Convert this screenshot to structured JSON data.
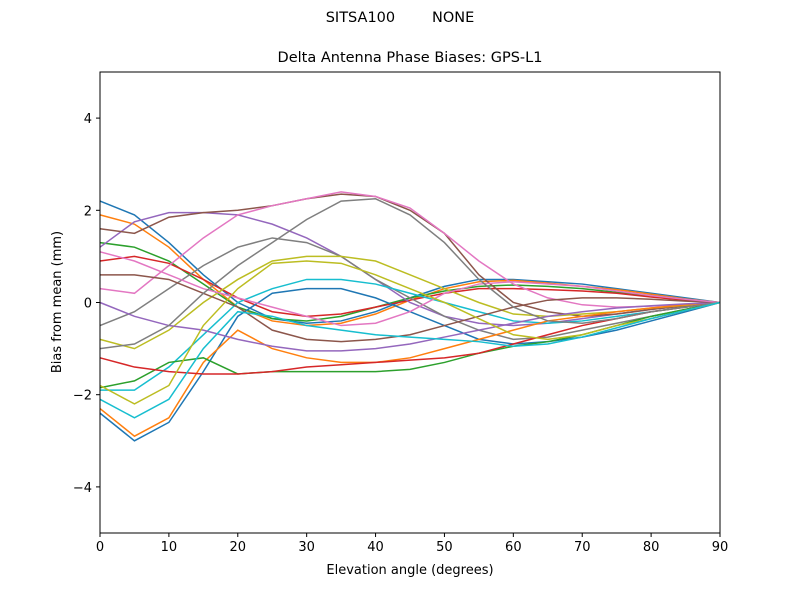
{
  "chart_data": {
    "type": "line",
    "suptitle": "SITSA100        NONE",
    "title": "Delta Antenna Phase Biases: GPS-L1",
    "xlabel": "Elevation angle (degrees)",
    "ylabel": "Bias from mean (mm)",
    "xlim": [
      0,
      90
    ],
    "ylim": [
      -5,
      5
    ],
    "xticks": [
      0,
      10,
      20,
      30,
      40,
      50,
      60,
      70,
      80,
      90
    ],
    "xtick_labels": [
      "0",
      "10",
      "20",
      "30",
      "40",
      "50",
      "60",
      "70",
      "80",
      "90"
    ],
    "yticks": [
      -4,
      -2,
      0,
      2,
      4
    ],
    "ytick_labels": [
      "−4",
      "−2",
      "0",
      "2",
      "4"
    ],
    "grid": false,
    "x": [
      0,
      5,
      10,
      15,
      20,
      25,
      30,
      35,
      40,
      45,
      50,
      55,
      60,
      65,
      70,
      75,
      80,
      85,
      90
    ],
    "colors": [
      "#1f77b4",
      "#ff7f0e",
      "#2ca02c",
      "#d62728",
      "#9467bd",
      "#8c564b",
      "#e377c2",
      "#7f7f7f",
      "#bcbd22",
      "#17becf"
    ],
    "series": [
      {
        "values": [
          2.2,
          1.9,
          1.3,
          0.6,
          0,
          -0.35,
          -0.45,
          -0.4,
          -0.2,
          0.1,
          0.35,
          0.5,
          0.5,
          0.45,
          0.4,
          0.3,
          0.2,
          0.1,
          0
        ]
      },
      {
        "values": [
          1.9,
          1.7,
          1.2,
          0.5,
          -0.1,
          -0.4,
          -0.5,
          -0.45,
          -0.25,
          0.05,
          0.3,
          0.45,
          0.48,
          0.42,
          0.35,
          0.28,
          0.18,
          0.08,
          0
        ]
      },
      {
        "values": [
          1.3,
          1.2,
          0.9,
          0.4,
          -0.1,
          -0.35,
          -0.4,
          -0.3,
          -0.1,
          0.1,
          0.25,
          0.35,
          0.38,
          0.35,
          0.3,
          0.22,
          0.15,
          0.07,
          0
        ]
      },
      {
        "values": [
          0.9,
          1.0,
          0.85,
          0.5,
          0.1,
          -0.2,
          -0.3,
          -0.25,
          -0.1,
          0.05,
          0.2,
          0.3,
          0.3,
          0.28,
          0.25,
          0.2,
          0.12,
          0.05,
          0
        ]
      },
      {
        "values": [
          1.2,
          1.75,
          1.95,
          1.95,
          1.9,
          1.7,
          1.4,
          1.0,
          0.5,
          0.0,
          -0.3,
          -0.45,
          -0.5,
          -0.45,
          -0.35,
          -0.25,
          -0.15,
          -0.07,
          0
        ]
      },
      {
        "values": [
          1.6,
          1.5,
          1.85,
          1.95,
          2.0,
          2.1,
          2.25,
          2.35,
          2.3,
          2.0,
          1.5,
          0.6,
          0.0,
          -0.2,
          -0.3,
          -0.25,
          -0.15,
          -0.07,
          0
        ]
      },
      {
        "values": [
          0.3,
          0.2,
          0.8,
          1.4,
          1.9,
          2.1,
          2.25,
          2.4,
          2.3,
          2.05,
          1.5,
          0.9,
          0.4,
          0.1,
          -0.05,
          -0.1,
          -0.08,
          -0.04,
          0
        ]
      },
      {
        "values": [
          -0.5,
          -0.2,
          0.3,
          0.8,
          1.2,
          1.4,
          1.3,
          1.0,
          0.5,
          0.1,
          -0.3,
          -0.6,
          -0.8,
          -0.75,
          -0.6,
          -0.45,
          -0.3,
          -0.15,
          0
        ]
      },
      {
        "values": [
          -0.8,
          -1.0,
          -0.6,
          0.0,
          0.5,
          0.9,
          1.0,
          1.0,
          0.9,
          0.6,
          0.3,
          0.0,
          -0.25,
          -0.3,
          -0.25,
          -0.2,
          -0.12,
          -0.06,
          0
        ]
      },
      {
        "values": [
          -1.9,
          -1.9,
          -1.4,
          -0.7,
          0.0,
          0.3,
          0.5,
          0.5,
          0.4,
          0.2,
          0.0,
          -0.2,
          -0.4,
          -0.45,
          -0.4,
          -0.3,
          -0.2,
          -0.1,
          0
        ]
      },
      {
        "values": [
          -2.4,
          -3.0,
          -2.6,
          -1.5,
          -0.3,
          0.2,
          0.3,
          0.3,
          0.1,
          -0.2,
          -0.5,
          -0.8,
          -0.9,
          -0.85,
          -0.75,
          -0.6,
          -0.4,
          -0.2,
          0
        ]
      },
      {
        "values": [
          -2.3,
          -2.9,
          -2.5,
          -1.3,
          -0.6,
          -1.0,
          -1.2,
          -1.3,
          -1.3,
          -1.2,
          -1.0,
          -0.8,
          -0.6,
          -0.4,
          -0.3,
          -0.2,
          -0.12,
          -0.05,
          0
        ]
      },
      {
        "values": [
          -1.85,
          -1.7,
          -1.3,
          -1.2,
          -1.55,
          -1.5,
          -1.5,
          -1.5,
          -1.5,
          -1.45,
          -1.3,
          -1.1,
          -0.95,
          -0.85,
          -0.7,
          -0.5,
          -0.3,
          -0.15,
          0
        ]
      },
      {
        "values": [
          -1.2,
          -1.4,
          -1.5,
          -1.55,
          -1.55,
          -1.5,
          -1.4,
          -1.35,
          -1.3,
          -1.25,
          -1.2,
          -1.1,
          -0.9,
          -0.7,
          -0.5,
          -0.35,
          -0.2,
          -0.1,
          0
        ]
      },
      {
        "values": [
          0.0,
          -0.3,
          -0.5,
          -0.6,
          -0.8,
          -0.95,
          -1.05,
          -1.05,
          -1.0,
          -0.9,
          -0.75,
          -0.6,
          -0.45,
          -0.3,
          -0.2,
          -0.12,
          -0.07,
          -0.03,
          0
        ]
      },
      {
        "values": [
          0.6,
          0.6,
          0.5,
          0.2,
          -0.1,
          -0.6,
          -0.8,
          -0.85,
          -0.8,
          -0.7,
          -0.5,
          -0.3,
          -0.1,
          0.05,
          0.1,
          0.1,
          0.07,
          0.03,
          0
        ]
      },
      {
        "values": [
          1.1,
          0.9,
          0.6,
          0.3,
          0.1,
          -0.1,
          -0.3,
          -0.5,
          -0.45,
          -0.2,
          0.2,
          0.4,
          0.45,
          0.4,
          0.35,
          0.25,
          0.15,
          0.07,
          0
        ]
      },
      {
        "values": [
          -1.0,
          -0.9,
          -0.5,
          0.2,
          0.8,
          1.3,
          1.8,
          2.2,
          2.25,
          1.9,
          1.3,
          0.5,
          -0.1,
          -0.4,
          -0.45,
          -0.35,
          -0.2,
          -0.1,
          0
        ]
      },
      {
        "values": [
          -1.8,
          -2.2,
          -1.8,
          -0.5,
          0.3,
          0.85,
          0.9,
          0.85,
          0.6,
          0.3,
          0.0,
          -0.35,
          -0.7,
          -0.8,
          -0.7,
          -0.5,
          -0.35,
          -0.17,
          0
        ]
      },
      {
        "values": [
          -2.1,
          -2.5,
          -2.1,
          -1.0,
          -0.2,
          -0.3,
          -0.5,
          -0.6,
          -0.7,
          -0.75,
          -0.8,
          -0.85,
          -0.95,
          -0.9,
          -0.75,
          -0.55,
          -0.35,
          -0.17,
          0
        ]
      }
    ]
  }
}
